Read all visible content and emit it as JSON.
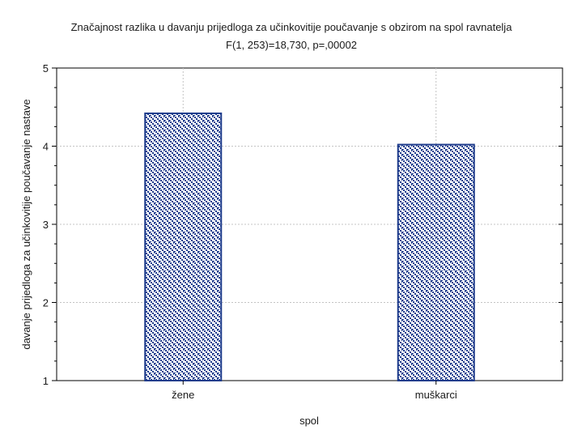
{
  "chart_data": {
    "type": "bar",
    "title": "Značajnost razlika u davanju prijedloga za učinkovitije poučavanje s obzirom na spol ravnatelja",
    "subtitle": "F(1, 253)=18,730, p=,00002",
    "xlabel": "spol",
    "ylabel": "davanje prijedloga za učinkovitije poučavanje nastave",
    "categories": [
      "žene",
      "muškarci"
    ],
    "values": [
      4.42,
      4.02
    ],
    "ylim": [
      1,
      5
    ],
    "yticks": [
      1,
      2,
      3,
      4,
      5
    ],
    "grid": true,
    "legend": "none",
    "bar_color": "#1f3c8c",
    "bar_fill": "#ffffff"
  }
}
